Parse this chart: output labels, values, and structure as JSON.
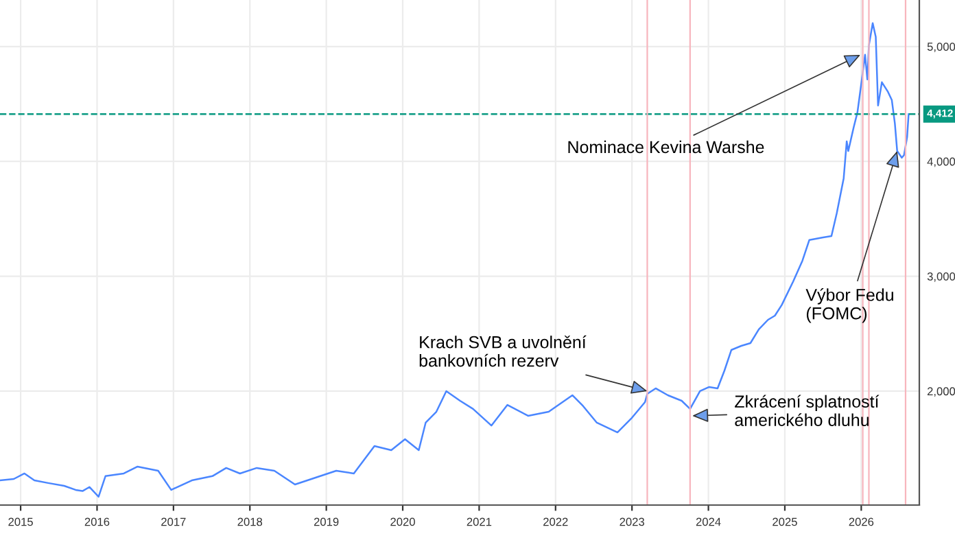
{
  "chart_data": {
    "type": "line",
    "x": [
      2014.73,
      2014.91,
      2015.05,
      2015.18,
      2015.36,
      2015.57,
      2015.72,
      2015.81,
      2015.9,
      2016.02,
      2016.11,
      2016.35,
      2016.53,
      2016.8,
      2016.97,
      2017.24,
      2017.51,
      2017.69,
      2017.87,
      2018.09,
      2018.32,
      2018.59,
      2018.86,
      2019.13,
      2019.36,
      2019.63,
      2019.85,
      2020.03,
      2020.21,
      2020.3,
      2020.44,
      2020.57,
      2020.75,
      2020.92,
      2021.16,
      2021.37,
      2021.64,
      2021.91,
      2022.22,
      2022.36,
      2022.54,
      2022.81,
      2022.99,
      2023.17,
      2023.2,
      2023.31,
      2023.47,
      2023.65,
      2023.76,
      2023.89,
      2024.01,
      2024.12,
      2024.21,
      2024.3,
      2024.43,
      2024.55,
      2024.66,
      2024.78,
      2024.87,
      2024.96,
      2025.11,
      2025.23,
      2025.32,
      2025.5,
      2025.61,
      2025.68,
      2025.77,
      2025.81,
      2025.83,
      2025.9,
      2025.95,
      2026.01,
      2026.05,
      2026.08,
      2026.1,
      2026.15,
      2026.19,
      2026.22,
      2026.27,
      2026.35,
      2026.4,
      2026.44,
      2026.47,
      2026.53,
      2026.56,
      2026.6,
      2026.62
    ],
    "series": [
      {
        "color": "#4a86ff",
        "values": [
          1223,
          1235,
          1283,
          1223,
          1200,
          1175,
          1140,
          1130,
          1165,
          1080,
          1260,
          1283,
          1343,
          1307,
          1140,
          1223,
          1260,
          1331,
          1283,
          1331,
          1307,
          1187,
          1247,
          1307,
          1283,
          1522,
          1486,
          1582,
          1486,
          1725,
          1820,
          2000,
          1916,
          1845,
          1700,
          1880,
          1785,
          1820,
          1964,
          1870,
          1725,
          1641,
          1761,
          1904,
          1976,
          2024,
          1964,
          1916,
          1845,
          2000,
          2036,
          2024,
          2179,
          2358,
          2394,
          2418,
          2538,
          2621,
          2657,
          2750,
          2956,
          3135,
          3315,
          3338,
          3350,
          3550,
          3852,
          4175,
          4090,
          4294,
          4426,
          4725,
          4928,
          4713,
          5011,
          5203,
          5084,
          4486,
          4689,
          4605,
          4534,
          4330,
          4091,
          4032,
          4055,
          4211,
          4412
        ]
      }
    ],
    "xlim": [
      2014.73,
      2026.76
    ],
    "xticks": [
      2015,
      2016,
      2017,
      2018,
      2019,
      2020,
      2021,
      2022,
      2023,
      2024,
      2025,
      2026
    ],
    "ylim": [
      1008,
      5405
    ],
    "yticks": [
      {
        "value": 2000,
        "label": "2,000"
      },
      {
        "value": 3000,
        "label": "3,000"
      },
      {
        "value": 4000,
        "label": "4,000"
      },
      {
        "value": 5000,
        "label": "5,000"
      }
    ],
    "grid": true,
    "marker": "none",
    "line_style": "solid",
    "ref_lines": [
      {
        "axis": "y",
        "value": 4412,
        "label": "4,412",
        "color": "#089981",
        "line_style": "dashed"
      },
      {
        "axis": "x",
        "value": 2023.2,
        "color": "#f7b5bd"
      },
      {
        "axis": "x",
        "value": 2023.76,
        "color": "#f7b5bd"
      },
      {
        "axis": "x",
        "value": 2026.02,
        "color": "#f7b5bd"
      },
      {
        "axis": "x",
        "value": 2026.1,
        "color": "#f7b5bd"
      },
      {
        "axis": "x",
        "value": 2026.58,
        "color": "#f7b5bd"
      }
    ],
    "annotations": [
      {
        "text": "Nominace Kevina Warshe",
        "x": 2025.99,
        "y": 4928
      },
      {
        "text": "Výbor Fedu\n(FOMC)",
        "x": 2026.47,
        "y": 4091
      },
      {
        "text": "Krach SVB a uvolnění\nbankovních rezerv",
        "x": 2023.2,
        "y": 2000
      },
      {
        "text": "Zkrácení splatností\namerického dluhu",
        "x": 2023.79,
        "y": 1785
      }
    ]
  }
}
